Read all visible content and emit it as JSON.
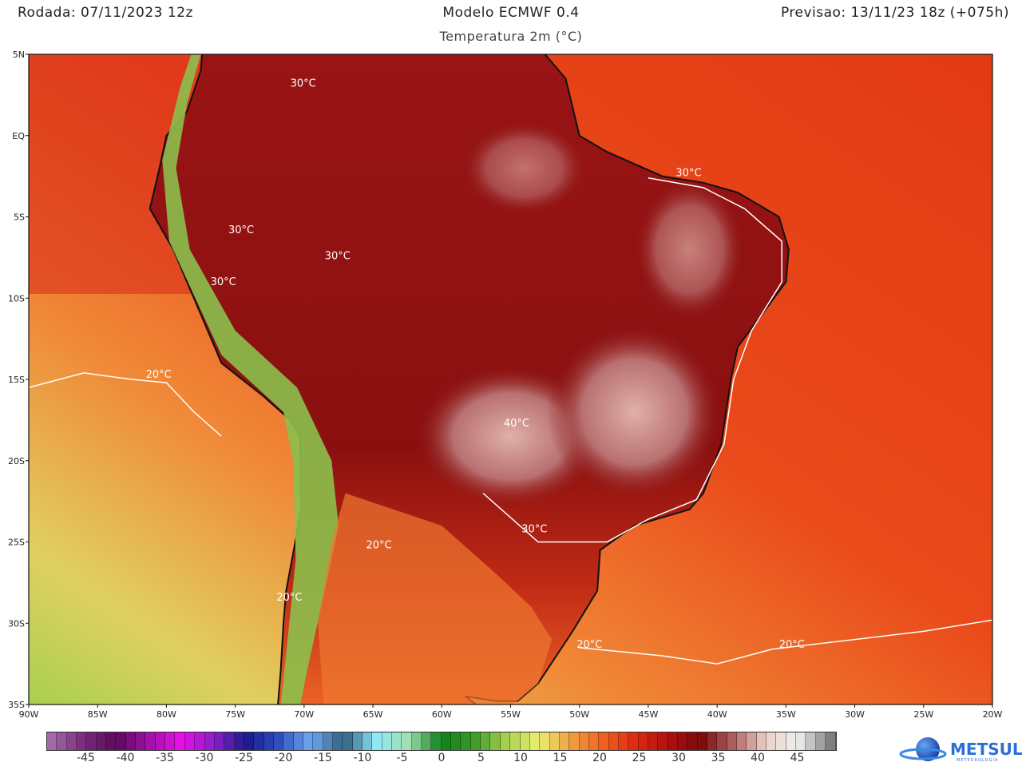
{
  "header": {
    "run": "Rodada: 07/11/2023 12z",
    "model": "Modelo ECMWF 0.4",
    "forecast": "Previsao: 13/11/23 18z (+075h)",
    "variable": "Temperatura 2m (°C)"
  },
  "map": {
    "lat_range": [
      -35,
      5
    ],
    "lon_range": [
      -90,
      -20
    ],
    "lat_labels": [
      "5N",
      "EQ",
      "5S",
      "10S",
      "15S",
      "20S",
      "25S",
      "30S",
      "35S"
    ],
    "lon_labels": [
      "90W",
      "85W",
      "80W",
      "75W",
      "70W",
      "65W",
      "60W",
      "55W",
      "50W",
      "45W",
      "40W",
      "35W",
      "30W",
      "25W",
      "20W"
    ],
    "contour_labels": [
      {
        "text": "30°C",
        "lon": -71,
        "lat": 3
      },
      {
        "text": "30°C",
        "lon": -43,
        "lat": -2.5
      },
      {
        "text": "30°C",
        "lon": -75.5,
        "lat": -6
      },
      {
        "text": "30°C",
        "lon": -68.5,
        "lat": -7.6
      },
      {
        "text": "30°C",
        "lon": -76.8,
        "lat": -9.2
      },
      {
        "text": "20°C",
        "lon": -81.5,
        "lat": -14.9
      },
      {
        "text": "40°C",
        "lon": -55.5,
        "lat": -17.9
      },
      {
        "text": "30°C",
        "lon": -54.2,
        "lat": -24.4
      },
      {
        "text": "20°C",
        "lon": -65.5,
        "lat": -25.4
      },
      {
        "text": "20°C",
        "lon": -72,
        "lat": -28.6
      },
      {
        "text": "20°C",
        "lon": -50.2,
        "lat": -31.5
      },
      {
        "text": "20°C",
        "lon": -35.5,
        "lat": -31.5
      }
    ]
  },
  "colorbar": {
    "range": [
      -50,
      50
    ],
    "tick_labels": [
      "-45",
      "-40",
      "-35",
      "-30",
      "-25",
      "-20",
      "-15",
      "-10",
      "-5",
      "0",
      "5",
      "10",
      "15",
      "20",
      "25",
      "30",
      "35",
      "40",
      "45"
    ],
    "stops": [
      "#a06aa8",
      "#7a2a7a",
      "#5c0a5c",
      "#a010a8",
      "#e810e8",
      "#8a20c8",
      "#1a1a8a",
      "#3050c0",
      "#70a8f0",
      "#306080",
      "#90e8f8",
      "#a0e0b0",
      "#10801a",
      "#3a9a2a",
      "#a8d050",
      "#e8f070",
      "#f0a040",
      "#f06020",
      "#e02810",
      "#b01010",
      "#7a0a0a",
      "#b06060",
      "#e8d0c8",
      "#f0f0ee",
      "#808080"
    ]
  },
  "logo": {
    "text": "METSUL",
    "subtext": "METEOROLOGIA",
    "color": "#2a6fd6"
  }
}
